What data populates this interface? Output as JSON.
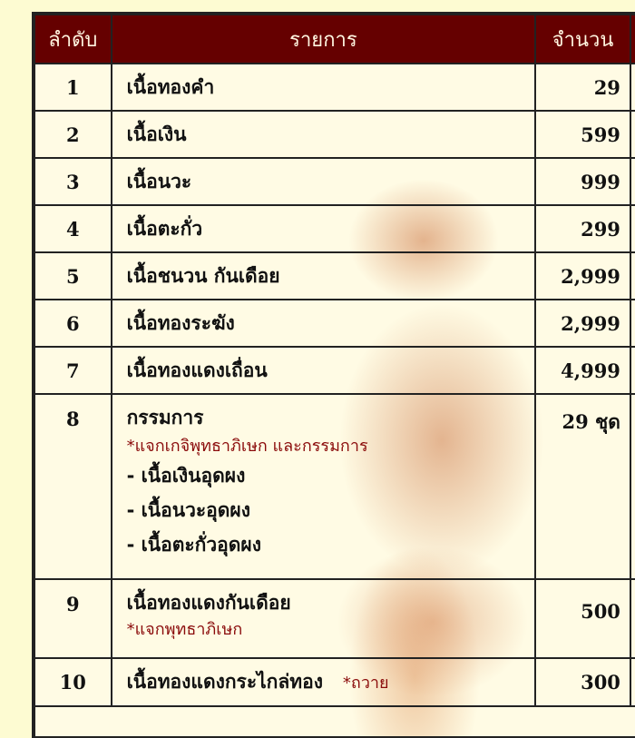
{
  "header": {
    "col_no": "ลำดับ",
    "col_item": "รายการ",
    "col_qty": "จำนวน"
  },
  "rows": [
    {
      "no": "1",
      "item": "เนื้อทองคำ",
      "qty": "29"
    },
    {
      "no": "2",
      "item": "เนื้อเงิน",
      "qty": "599"
    },
    {
      "no": "3",
      "item": "เนื้อนวะ",
      "qty": "999"
    },
    {
      "no": "4",
      "item": "เนื้อตะกั่ว",
      "qty": "299"
    },
    {
      "no": "5",
      "item": "เนื้อชนวน กันเดือย",
      "qty": "2,999"
    },
    {
      "no": "6",
      "item": "เนื้อทองระฆัง",
      "qty": "2,999"
    },
    {
      "no": "7",
      "item": "เนื้อทองแดงเถื่อน",
      "qty": "4,999"
    }
  ],
  "row8": {
    "no": "8",
    "item": "กรรมการ",
    "note": "*แจกเกจิพุทธาภิเษก และกรรมการ",
    "subitems": [
      "- เนื้อเงินอุดผง",
      "- เนื้อนวะอุดผง",
      "- เนื้อตะกั่วอุดผง"
    ],
    "qty": "29 ชุด"
  },
  "row9": {
    "no": "9",
    "item": "เนื้อทองแดงกันเดือย",
    "note": "*แจกพุทธาภิเษก",
    "qty": "500"
  },
  "row10": {
    "no": "10",
    "item": "เนื้อทองแดงกระไกล่ทอง",
    "note": "*ถวาย",
    "qty": "300"
  },
  "colors": {
    "header_bg": "#650000",
    "note": "#8a0a0a",
    "page_bg": "#fdfbd2"
  }
}
